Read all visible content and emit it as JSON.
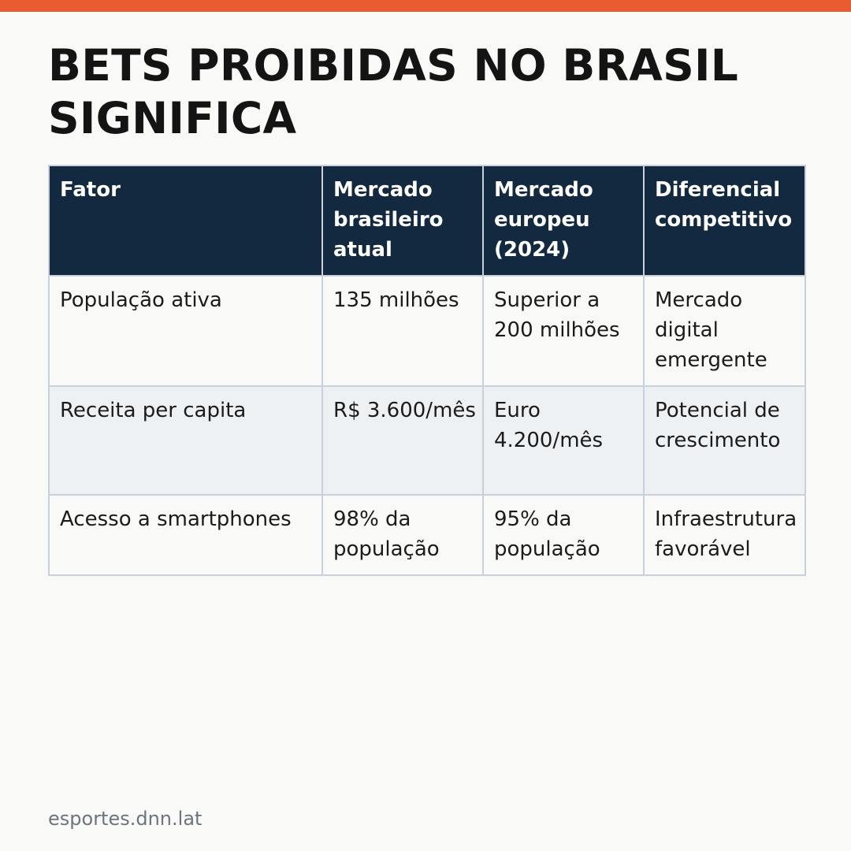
{
  "colors": {
    "accent_bar": "#e95b30",
    "header_bg": "#12293f",
    "row_white": "#f9f9f7",
    "row_striped": "#edf1f4",
    "border": "#c9d2dc"
  },
  "title": "BETS PROIBIDAS NO BRASIL SIGNIFICA",
  "table": {
    "headers": [
      "Fator",
      "Mercado brasileiro atual",
      "Mercado europeu (2024)",
      "Diferencial competitivo"
    ],
    "rows": [
      [
        "População ativa",
        "135 milhões",
        "Superior a 200 milhões",
        "Mercado digital emergente"
      ],
      [
        "Receita per capita",
        "R$ 3.600/mês",
        "Euro 4.200/mês",
        "Potencial de crescimento"
      ],
      [
        "Acesso a smartphones",
        "98% da população",
        "95% da população",
        "Infraestrutura favorável"
      ]
    ]
  },
  "footer": "esportes.dnn.lat"
}
